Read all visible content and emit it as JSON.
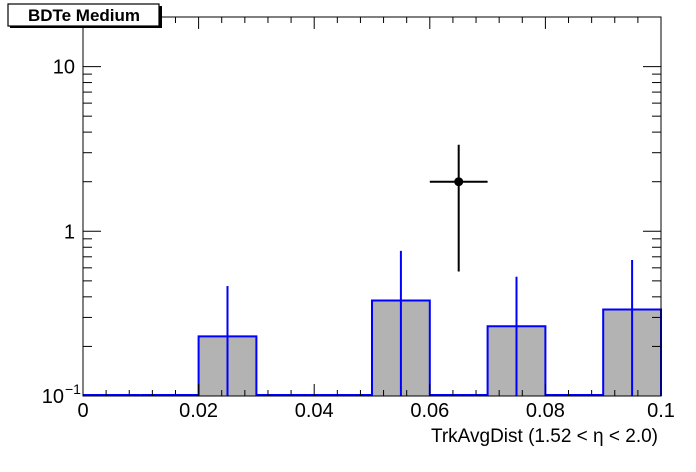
{
  "chart_data": {
    "type": "bar",
    "title": "BDTe Medium",
    "xlabel": "TrkAvgDist (1.52 <  η < 2.0)",
    "ylabel": "",
    "x_scale": "linear",
    "y_scale": "log",
    "xlim": [
      0,
      0.1
    ],
    "ylim": [
      0.1,
      20
    ],
    "x_ticks": [
      {
        "value": 0,
        "label": "0"
      },
      {
        "value": 0.02,
        "label": "0.02"
      },
      {
        "value": 0.04,
        "label": "0.04"
      },
      {
        "value": 0.06,
        "label": "0.06"
      },
      {
        "value": 0.08,
        "label": "0.08"
      },
      {
        "value": 0.1,
        "label": "0.1"
      }
    ],
    "y_ticks": [
      {
        "value": 0.1,
        "label_base": "10",
        "label_exp": "−1"
      },
      {
        "value": 1,
        "label_base": "1",
        "label_exp": ""
      },
      {
        "value": 10,
        "label_base": "10",
        "label_exp": ""
      }
    ],
    "grid": false,
    "histogram": {
      "bin_edges": [
        0,
        0.01,
        0.02,
        0.03,
        0.04,
        0.05,
        0.06,
        0.07,
        0.08,
        0.09,
        0.1
      ],
      "values": [
        0,
        0,
        0.23,
        0,
        0,
        0.38,
        0,
        0.265,
        0,
        0.335
      ],
      "err_high": [
        0,
        0,
        0.465,
        0,
        0,
        0.76,
        0,
        0.53,
        0,
        0.67
      ],
      "fill_color": "#b3b3b3",
      "line_color": "#0000ff"
    },
    "data_points": [
      {
        "x": 0.065,
        "y": 2.0,
        "x_err": 0.005,
        "y_low": 0.57,
        "y_high": 3.35
      }
    ],
    "colors": {
      "frame": "#000000",
      "hist_fill": "#b3b3b3",
      "hist_line": "#0000ff",
      "marker": "#000000"
    }
  }
}
